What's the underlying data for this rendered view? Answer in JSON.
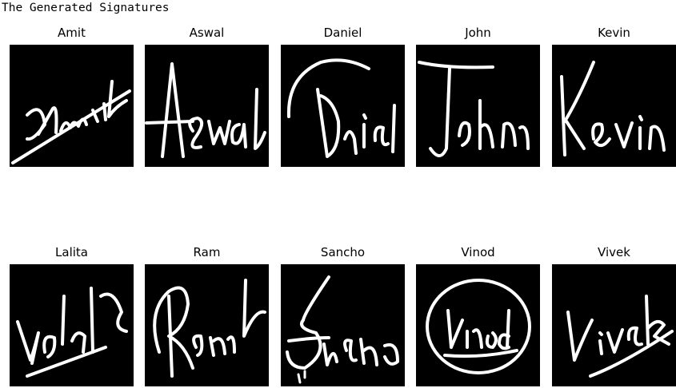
{
  "output_title": "The Generated Signatures",
  "signatures": [
    {
      "label": "Amit",
      "signature_text": "Amit"
    },
    {
      "label": "Aswal",
      "signature_text": "Aswal"
    },
    {
      "label": "Daniel",
      "signature_text": "Daniel"
    },
    {
      "label": "John",
      "signature_text": "John"
    },
    {
      "label": "Kevin",
      "signature_text": "Kevin"
    },
    {
      "label": "Lalita",
      "signature_text": "Lalita"
    },
    {
      "label": "Ram",
      "signature_text": "Ram"
    },
    {
      "label": "Sancho",
      "signature_text": "Sancho"
    },
    {
      "label": "Vinod",
      "signature_text": "Vinod"
    },
    {
      "label": "Vivek",
      "signature_text": "Vivek"
    }
  ]
}
